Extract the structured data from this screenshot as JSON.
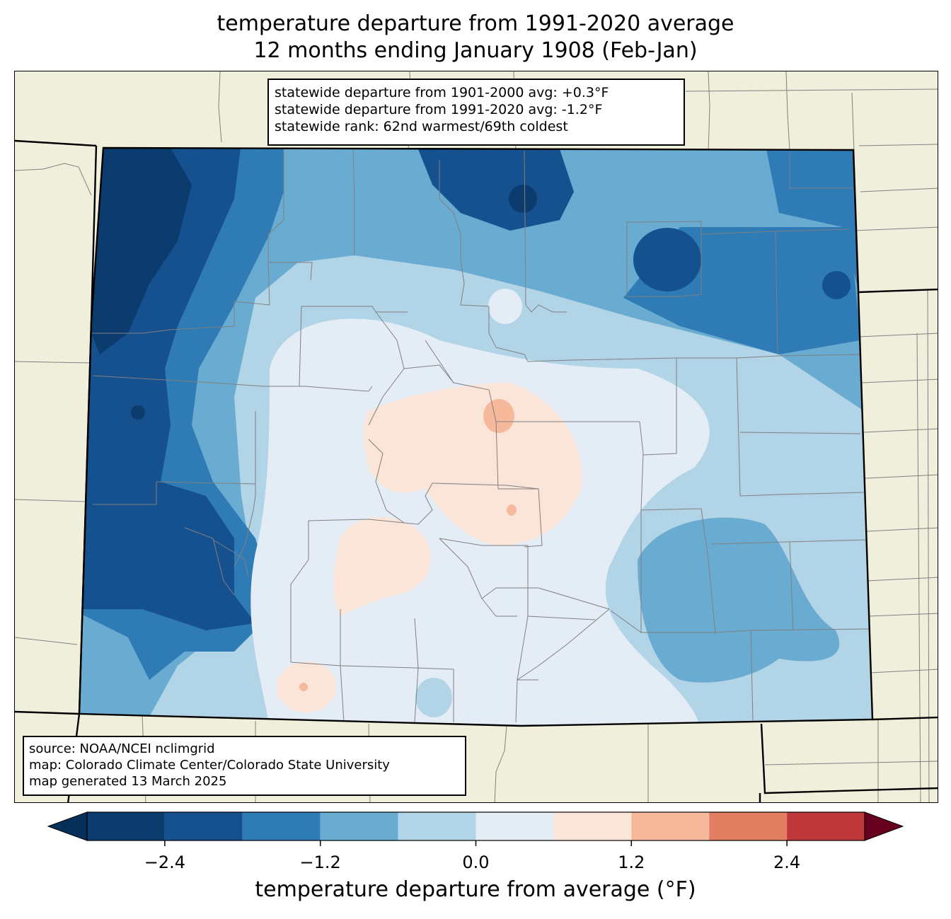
{
  "title": {
    "line1": "temperature departure from 1991-2020 average",
    "line2": "12 months ending January 1908 (Feb-Jan)"
  },
  "stats": {
    "line1": "statewide departure from 1901-2000 avg: +0.3°F",
    "line2": "statewide departure from 1991-2020 avg: -1.2°F",
    "line3": "statewide rank: 62nd warmest/69th coldest"
  },
  "source": {
    "line1": "source: NOAA/NCEI nclimgrid",
    "line2": "map: Colorado Climate Center/Colorado State University",
    "line3": "map generated 13 March 2025"
  },
  "colorbar": {
    "label": "temperature departure from average (°F)",
    "ticks": [
      "−2.4",
      "−1.2",
      "0.0",
      "1.2",
      "2.4"
    ],
    "bins": [
      -3.0,
      -2.4,
      -1.8,
      -1.2,
      -0.6,
      0.0,
      0.6,
      1.2,
      1.8,
      2.4,
      3.0
    ],
    "colors": [
      "#0c3b6e",
      "#15508f",
      "#2f7bb6",
      "#69abd1",
      "#b2d4e7",
      "#e4edf5",
      "#fbe5d9",
      "#f7b99b",
      "#e27f63",
      "#c1383a",
      "#870b25"
    ],
    "under_color": "#062f5a",
    "over_color": "#67001f"
  },
  "map_colors": {
    "land": "#efefdc",
    "state_border": "#000000",
    "county_border": "#808080"
  }
}
